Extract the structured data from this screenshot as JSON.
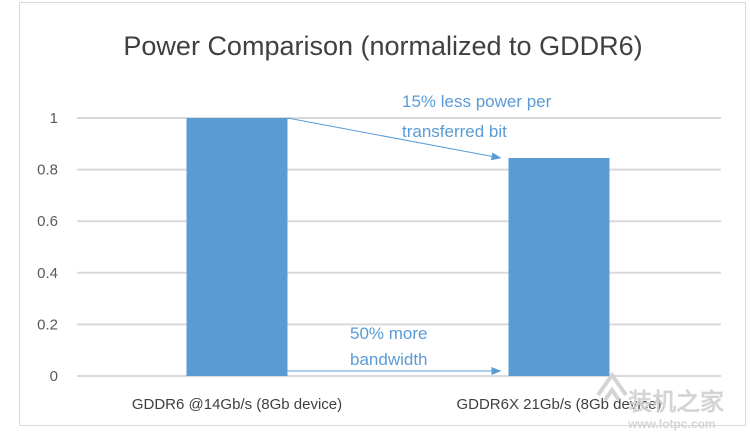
{
  "chart_data": {
    "type": "bar",
    "title": "Power Comparison (normalized to GDDR6)",
    "categories": [
      "GDDR6 @14Gb/s (8Gb device)",
      "GDDR6X 21Gb/s (8Gb device)"
    ],
    "values": [
      1.0,
      0.845
    ],
    "xlabel": "",
    "ylabel": "",
    "ylim": [
      0,
      1
    ],
    "yticks": [
      0,
      0.2,
      0.4,
      0.6,
      0.8,
      1
    ],
    "ytick_labels": [
      "0",
      "0.2",
      "0.4",
      "0.6",
      "0.8",
      "1"
    ],
    "grid": true,
    "legend": "none",
    "bar_color": "#5b9bd5",
    "annotations": [
      {
        "lines": [
          "15% less power per",
          "transferred bit"
        ],
        "arrow": "from top of first bar to top of second bar"
      },
      {
        "lines": [
          "50% more",
          "bandwidth"
        ],
        "arrow": "along baseline from first bar to second bar"
      }
    ]
  },
  "watermark": {
    "text": "装机之家",
    "url": "www.lotpc.com"
  }
}
